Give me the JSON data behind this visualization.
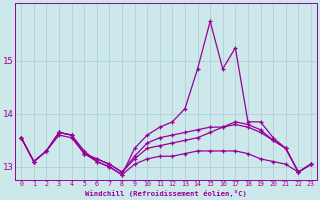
{
  "xlabel": "Windchill (Refroidissement éolien,°C)",
  "bg_color": "#cde8ea",
  "grid_color": "#a8cdd0",
  "line_color": "#990099",
  "xlim": [
    -0.5,
    23.5
  ],
  "ylim": [
    12.75,
    16.1
  ],
  "yticks": [
    13,
    14,
    15
  ],
  "xticks": [
    0,
    1,
    2,
    3,
    4,
    5,
    6,
    7,
    8,
    9,
    10,
    11,
    12,
    13,
    14,
    15,
    16,
    17,
    18,
    19,
    20,
    21,
    22,
    23
  ],
  "series": [
    [
      13.55,
      13.1,
      13.3,
      13.65,
      13.6,
      13.3,
      13.1,
      13.0,
      12.85,
      13.35,
      13.6,
      13.75,
      13.85,
      14.1,
      14.85,
      15.75,
      14.85,
      15.25,
      13.85,
      13.85,
      13.55,
      13.35,
      12.9,
      13.05
    ],
    [
      13.55,
      13.1,
      13.3,
      13.6,
      13.55,
      13.25,
      13.15,
      13.05,
      12.9,
      13.15,
      13.35,
      13.4,
      13.45,
      13.5,
      13.55,
      13.65,
      13.75,
      13.85,
      13.8,
      13.7,
      13.5,
      13.35,
      12.9,
      13.05
    ],
    [
      13.55,
      13.1,
      13.3,
      13.65,
      13.6,
      13.25,
      13.15,
      13.05,
      12.9,
      13.2,
      13.45,
      13.55,
      13.6,
      13.65,
      13.7,
      13.75,
      13.75,
      13.8,
      13.75,
      13.65,
      13.5,
      13.35,
      12.9,
      13.05
    ],
    [
      13.55,
      13.1,
      13.3,
      13.65,
      13.6,
      13.25,
      13.1,
      13.0,
      12.85,
      13.05,
      13.15,
      13.2,
      13.2,
      13.25,
      13.3,
      13.3,
      13.3,
      13.3,
      13.25,
      13.15,
      13.1,
      13.05,
      12.9,
      13.05
    ]
  ]
}
